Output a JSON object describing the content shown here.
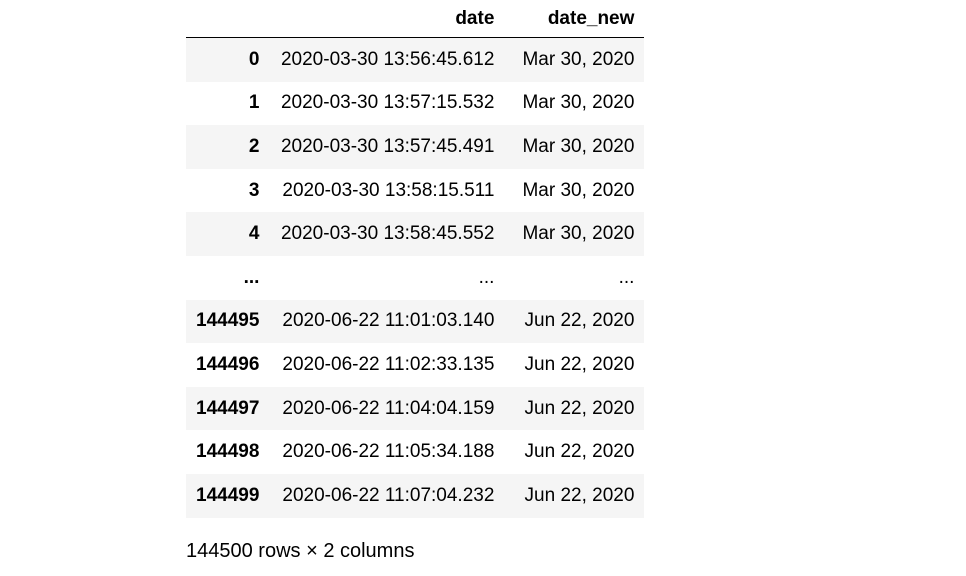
{
  "table": {
    "columns": [
      "",
      "date",
      "date_new"
    ],
    "rows": [
      {
        "index": "0",
        "date": "2020-03-30 13:56:45.612",
        "date_new": "Mar 30, 2020"
      },
      {
        "index": "1",
        "date": "2020-03-30 13:57:15.532",
        "date_new": "Mar 30, 2020"
      },
      {
        "index": "2",
        "date": "2020-03-30 13:57:45.491",
        "date_new": "Mar 30, 2020"
      },
      {
        "index": "3",
        "date": "2020-03-30 13:58:15.511",
        "date_new": "Mar 30, 2020"
      },
      {
        "index": "4",
        "date": "2020-03-30 13:58:45.552",
        "date_new": "Mar 30, 2020"
      },
      {
        "index": "...",
        "date": "...",
        "date_new": "..."
      },
      {
        "index": "144495",
        "date": "2020-06-22 11:01:03.140",
        "date_new": "Jun 22, 2020"
      },
      {
        "index": "144496",
        "date": "2020-06-22 11:02:33.135",
        "date_new": "Jun 22, 2020"
      },
      {
        "index": "144497",
        "date": "2020-06-22 11:04:04.159",
        "date_new": "Jun 22, 2020"
      },
      {
        "index": "144498",
        "date": "2020-06-22 11:05:34.188",
        "date_new": "Jun 22, 2020"
      },
      {
        "index": "144499",
        "date": "2020-06-22 11:07:04.232",
        "date_new": "Jun 22, 2020"
      }
    ]
  },
  "shape_text": "144500 rows × 2 columns",
  "colors": {
    "stripe": "#f5f5f5",
    "background": "#ffffff",
    "text": "#000000"
  }
}
